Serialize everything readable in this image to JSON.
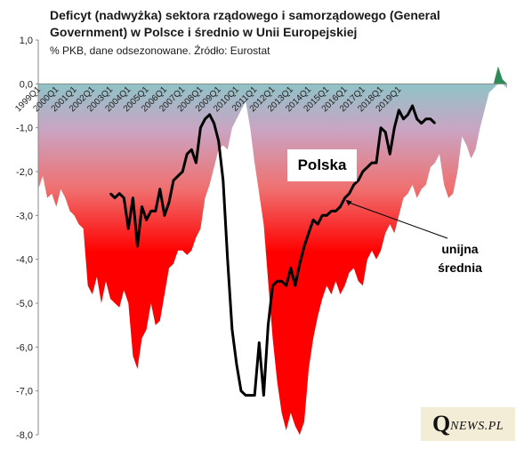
{
  "header": {
    "title": "Deficyt (nadwyżka)  sektora rządowego i samorządowego (General Government) w Polsce i średnio w Unii Europejskiej",
    "subtitle": "% PKB, dane odsezonowane. Źródło: Eurostat"
  },
  "annotations": {
    "polska": "Polska",
    "eu_line1": "unijna",
    "eu_line2": "średnia"
  },
  "brand": {
    "big": "Q",
    "small": "NEWS.PL"
  },
  "colors": {
    "poland_negative": "#ff0000",
    "poland_positive": "#2e8b57",
    "eu_line": "#000000",
    "gradient_top": "#8fc3c7"
  },
  "chart_data": {
    "type": "area",
    "ylim": [
      -8.0,
      1.0
    ],
    "yticks": [
      "1,0",
      "0,0",
      "-1,0",
      "-2,0",
      "-3,0",
      "-4,0",
      "-5,0",
      "-6,0",
      "-7,0",
      "-8,0"
    ],
    "x_start": "1999Q1",
    "x_labels": [
      "1999Q1",
      "2000Q1",
      "2001Q1",
      "2002Q1",
      "2003Q1",
      "2004Q1",
      "2005Q1",
      "2006Q1",
      "2007Q1",
      "2008Q1",
      "2009Q1",
      "2010Q1",
      "2011Q1",
      "2012Q1",
      "2013Q1",
      "2014Q1",
      "2015Q1",
      "2016Q1",
      "2017Q1",
      "2018Q1",
      "2019Q1"
    ],
    "grid": false,
    "legend": "none",
    "series": [
      {
        "name": "Polska",
        "style": "area",
        "values": [
          -2.4,
          -2.1,
          -2.6,
          -2.5,
          -2.8,
          -2.4,
          -2.6,
          -2.9,
          -3.0,
          -3.2,
          -3.3,
          -4.6,
          -4.8,
          -4.4,
          -5.0,
          -4.5,
          -4.9,
          -5.0,
          -5.1,
          -4.7,
          -5.0,
          -6.2,
          -6.5,
          -5.8,
          -5.6,
          -5.0,
          -5.5,
          -5.4,
          -4.8,
          -4.2,
          -4.1,
          -3.8,
          -3.8,
          -3.9,
          -3.8,
          -3.5,
          -3.3,
          -2.6,
          -2.3,
          -1.9,
          -1.5,
          -1.4,
          -1.5,
          -1.0,
          -0.8,
          -0.6,
          -0.4,
          -1.0,
          -1.8,
          -2.5,
          -3.2,
          -4.5,
          -5.8,
          -6.8,
          -7.5,
          -7.9,
          -7.5,
          -7.8,
          -8.0,
          -7.7,
          -6.5,
          -5.8,
          -5.3,
          -4.9,
          -4.6,
          -4.8,
          -4.5,
          -4.8,
          -4.6,
          -4.3,
          -4.2,
          -4.5,
          -4.6,
          -4.0,
          -3.8,
          -4.0,
          -3.8,
          -3.4,
          -3.2,
          -3.4,
          -3.0,
          -2.6,
          -2.5,
          -2.3,
          -2.6,
          -2.4,
          -2.3,
          -1.9,
          -1.8,
          -1.6,
          -2.3,
          -2.6,
          -2.5,
          -2.0,
          -1.2,
          -1.4,
          -1.7,
          -1.5,
          -1.0,
          -0.6,
          -0.2,
          -0.1,
          0.4,
          0.1,
          -0.1
        ]
      },
      {
        "name": "unijna średnia",
        "style": "line",
        "start_index": 16,
        "values": [
          -2.5,
          -2.6,
          -2.5,
          -2.6,
          -3.3,
          -2.6,
          -3.7,
          -2.8,
          -3.1,
          -2.9,
          -2.9,
          -2.4,
          -3.0,
          -2.7,
          -2.2,
          -2.1,
          -2.0,
          -1.6,
          -1.5,
          -1.8,
          -1.0,
          -0.8,
          -0.7,
          -0.9,
          -1.3,
          -2.2,
          -4.0,
          -5.6,
          -6.4,
          -7.0,
          -7.1,
          -7.1,
          -7.1,
          -5.9,
          -7.1,
          -5.5,
          -4.6,
          -4.5,
          -4.5,
          -4.6,
          -4.2,
          -4.6,
          -4.1,
          -3.7,
          -3.4,
          -3.1,
          -3.2,
          -3.0,
          -3.0,
          -2.9,
          -2.9,
          -2.8,
          -2.6,
          -2.5,
          -2.3,
          -2.2,
          -2.0,
          -1.9,
          -1.8,
          -1.8,
          -1.0,
          -1.1,
          -1.6,
          -1.0,
          -0.6,
          -0.8,
          -0.7,
          -0.5,
          -0.8,
          -0.9,
          -0.8,
          -0.8,
          -0.9
        ]
      }
    ]
  }
}
